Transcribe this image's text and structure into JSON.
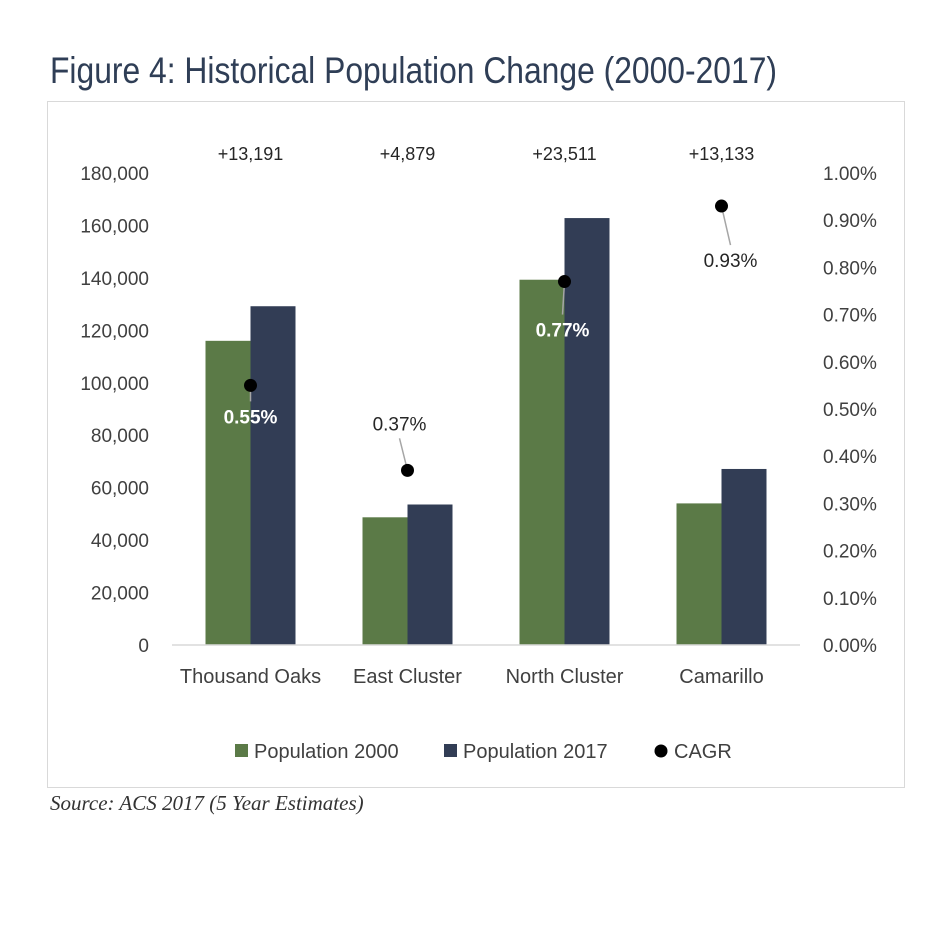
{
  "figure": {
    "title": "Figure 4: Historical Population Change (2000-2017)",
    "source": "Source: ACS 2017 (5 Year Estimates)"
  },
  "chart_data": {
    "type": "bar",
    "categories": [
      "Thousand Oaks",
      "East Cluster",
      "North Cluster",
      "Camarillo"
    ],
    "series": [
      {
        "name": "Population 2000",
        "color": "#5b7a47",
        "values": [
          116000,
          48700,
          139300,
          54000
        ]
      },
      {
        "name": "Population 2017",
        "color": "#323d55",
        "values": [
          129191,
          53579,
          162811,
          67133
        ]
      }
    ],
    "secondary_series": {
      "name": "CAGR",
      "type": "scatter",
      "color": "#000000",
      "values": [
        0.0055,
        0.0037,
        0.0077,
        0.0093
      ],
      "labels": [
        "0.55%",
        "0.37%",
        "0.77%",
        "0.93%"
      ]
    },
    "change_labels": [
      "+13,191",
      "+4,879",
      "+23,511",
      "+13,133"
    ],
    "y_axis": {
      "range": [
        0,
        180000
      ],
      "ticks": [
        "0",
        "20,000",
        "40,000",
        "60,000",
        "80,000",
        "100,000",
        "120,000",
        "140,000",
        "160,000",
        "180,000"
      ]
    },
    "y2_axis": {
      "range": [
        0,
        0.01
      ],
      "ticks": [
        "0.00%",
        "0.10%",
        "0.20%",
        "0.30%",
        "0.40%",
        "0.50%",
        "0.60%",
        "0.70%",
        "0.80%",
        "0.90%",
        "1.00%"
      ]
    },
    "legend": {
      "position": "bottom",
      "items": [
        {
          "label": "Population 2000",
          "marker": "square",
          "color": "#5b7a47"
        },
        {
          "label": "Population 2017",
          "marker": "square",
          "color": "#323d55"
        },
        {
          "label": "CAGR",
          "marker": "circle",
          "color": "#000000"
        }
      ]
    },
    "grid": false
  }
}
